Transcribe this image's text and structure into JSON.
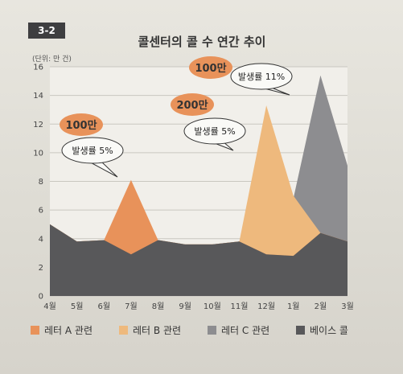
{
  "figure_number": "3-2",
  "chart_data": {
    "type": "area",
    "title": "콜센터의 콜 수 연간 추이",
    "unit_label": "(단위: 만 건)",
    "categories": [
      "4월",
      "5월",
      "6월",
      "7월",
      "8월",
      "9월",
      "10월",
      "11월",
      "12월",
      "1월",
      "2월",
      "3월"
    ],
    "ylim": [
      0,
      16
    ],
    "yticks": [
      0,
      2,
      4,
      6,
      8,
      10,
      12,
      14,
      16
    ],
    "grid": true,
    "legend_position": "bottom",
    "series": [
      {
        "name": "베이스 콜",
        "color": "#58585a",
        "values": [
          5.0,
          3.8,
          3.9,
          2.9,
          3.9,
          3.6,
          3.6,
          3.8,
          2.9,
          2.8,
          4.4,
          3.8
        ]
      },
      {
        "name": "레터 A 관련",
        "color": "#e8925a",
        "values": [
          5.0,
          3.8,
          3.9,
          8.1,
          3.9,
          3.6,
          3.6,
          3.8,
          2.9,
          2.8,
          4.4,
          3.8
        ]
      },
      {
        "name": "레터 B 관련",
        "color": "#eeb97d",
        "values": [
          5.0,
          3.8,
          3.9,
          2.9,
          3.9,
          3.6,
          3.6,
          3.8,
          13.3,
          7.0,
          4.4,
          3.8
        ]
      },
      {
        "name": "레터 C 관련",
        "color": "#8d8d90",
        "values": [
          5.0,
          3.8,
          3.9,
          2.9,
          3.9,
          3.6,
          3.6,
          3.8,
          2.9,
          6.8,
          15.4,
          9.1
        ]
      }
    ],
    "annotations": [
      {
        "bubble": "100만",
        "text": "발생률 5%"
      },
      {
        "bubble": "200만",
        "text": "발생률 5%"
      },
      {
        "bubble": "100만",
        "text": "발생률 11%"
      }
    ]
  }
}
